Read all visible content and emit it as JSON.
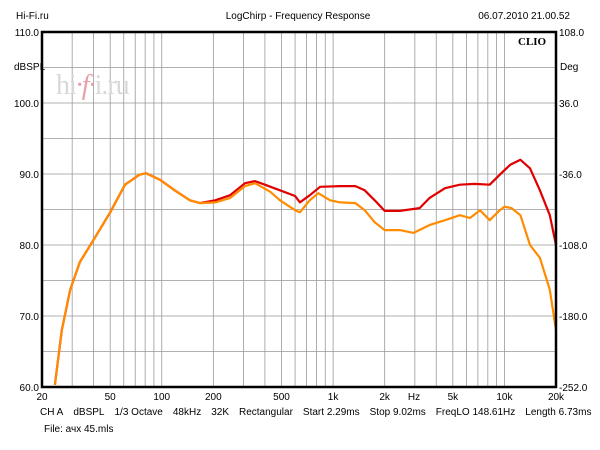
{
  "header": {
    "left": "Hi-Fi.ru",
    "title": "LogChirp - Frequency Response",
    "datetime": "06.07.2010 21.00.52"
  },
  "watermark": "hi-fi.ru",
  "brand": "CLIO",
  "footer": {
    "settings": [
      "CH A",
      "dBSPL",
      "1/3 Octave",
      "48kHz",
      "32K",
      "Rectangular",
      "Start 2.29ms",
      "Stop 9.02ms",
      "FreqLO 148.61Hz",
      "Length 6.73ms"
    ],
    "file": "File: ачх 45.mls"
  },
  "chart_data": {
    "type": "line",
    "title": "LogChirp - Frequency Response",
    "xlabel": "Hz",
    "ylabel": "dBSPL",
    "y2label": "Deg",
    "xscale": "log",
    "xlim": [
      20,
      20000
    ],
    "ylim": [
      60,
      110
    ],
    "y2lim": [
      -252,
      108
    ],
    "grid": true,
    "x_ticks": [
      {
        "v": 20,
        "label": "20"
      },
      {
        "v": 50,
        "label": "50"
      },
      {
        "v": 100,
        "label": "100"
      },
      {
        "v": 200,
        "label": "200"
      },
      {
        "v": 500,
        "label": "500"
      },
      {
        "v": 1000,
        "label": "1k"
      },
      {
        "v": 2000,
        "label": "2k"
      },
      {
        "v": 5000,
        "label": "5k"
      },
      {
        "v": 10000,
        "label": "10k"
      },
      {
        "v": 20000,
        "label": "20k"
      }
    ],
    "y_ticks": [
      "60.0",
      "70.0",
      "80.0",
      "90.0",
      "100.0",
      "110.0"
    ],
    "y2_ticks": [
      "-252.0",
      "-180.0",
      "-108.0",
      "-36.0",
      "36.0",
      "108.0"
    ],
    "series": [
      {
        "name": "red",
        "color": "#e00000",
        "points": [
          [
            23.8,
            60.3
          ],
          [
            26.1,
            68
          ],
          [
            29.2,
            73.7
          ],
          [
            33.3,
            77.6
          ],
          [
            40.9,
            81.1
          ],
          [
            50,
            84.6
          ],
          [
            61,
            88.5
          ],
          [
            74,
            89.9
          ],
          [
            81,
            90.1
          ],
          [
            97.6,
            89.2
          ],
          [
            119,
            87.7
          ],
          [
            146,
            86.3
          ],
          [
            167,
            85.9
          ],
          [
            205,
            86.3
          ],
          [
            250,
            87
          ],
          [
            306,
            88.7
          ],
          [
            350,
            89
          ],
          [
            400,
            88.5
          ],
          [
            490,
            87.7
          ],
          [
            600,
            86.9
          ],
          [
            640,
            86
          ],
          [
            730,
            87
          ],
          [
            840,
            88.2
          ],
          [
            1100,
            88.3
          ],
          [
            1350,
            88.3
          ],
          [
            1530,
            87.7
          ],
          [
            1750,
            86.3
          ],
          [
            2000,
            84.8
          ],
          [
            2450,
            84.8
          ],
          [
            3200,
            85.2
          ],
          [
            3650,
            86.6
          ],
          [
            4500,
            88
          ],
          [
            5500,
            88.5
          ],
          [
            6700,
            88.6
          ],
          [
            8200,
            88.5
          ],
          [
            9400,
            89.9
          ],
          [
            10800,
            91.3
          ],
          [
            12400,
            92
          ],
          [
            14100,
            90.8
          ],
          [
            16100,
            87.7
          ],
          [
            18400,
            84.2
          ],
          [
            20000,
            80
          ]
        ]
      },
      {
        "name": "orange",
        "color": "#ff8c00",
        "points": [
          [
            23.8,
            60.3
          ],
          [
            26.1,
            68
          ],
          [
            29.2,
            73.7
          ],
          [
            33.3,
            77.6
          ],
          [
            40.9,
            81.1
          ],
          [
            50,
            84.6
          ],
          [
            61,
            88.5
          ],
          [
            74,
            89.9
          ],
          [
            81,
            90.1
          ],
          [
            97.6,
            89.2
          ],
          [
            119,
            87.7
          ],
          [
            146,
            86.3
          ],
          [
            167,
            85.9
          ],
          [
            205,
            86
          ],
          [
            250,
            86.6
          ],
          [
            306,
            88.3
          ],
          [
            350,
            88.7
          ],
          [
            430,
            87.5
          ],
          [
            490,
            86.3
          ],
          [
            600,
            84.9
          ],
          [
            640,
            84.6
          ],
          [
            730,
            86.3
          ],
          [
            820,
            87.3
          ],
          [
            960,
            86.3
          ],
          [
            1100,
            86
          ],
          [
            1350,
            85.9
          ],
          [
            1530,
            84.9
          ],
          [
            1750,
            83.2
          ],
          [
            2000,
            82.1
          ],
          [
            2450,
            82.1
          ],
          [
            2950,
            81.7
          ],
          [
            3650,
            82.8
          ],
          [
            4500,
            83.5
          ],
          [
            5500,
            84.2
          ],
          [
            6300,
            83.8
          ],
          [
            7200,
            84.9
          ],
          [
            8200,
            83.5
          ],
          [
            9400,
            84.9
          ],
          [
            10000,
            85.4
          ],
          [
            11000,
            85.2
          ],
          [
            12400,
            84.2
          ],
          [
            14100,
            80
          ],
          [
            16100,
            78.2
          ],
          [
            18400,
            73.7
          ],
          [
            20000,
            68
          ]
        ]
      }
    ]
  }
}
